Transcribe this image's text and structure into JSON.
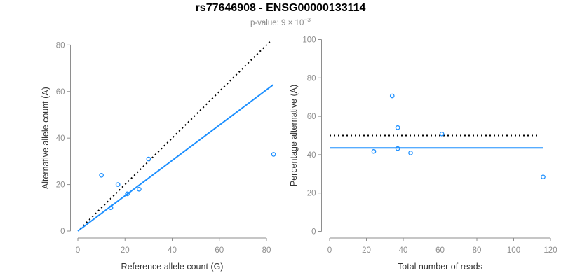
{
  "header": {
    "title": "rs77646908 - ENSG00000133114",
    "subtitle_main": "p-value: 9 × 10",
    "subtitle_exponent": "−3"
  },
  "colors": {
    "background": "#ffffff",
    "title": "#000000",
    "subtitle": "#8a8a8a",
    "axis_line": "#8e8e8e",
    "tick_label": "#8e8e8e",
    "axis_title": "#333333",
    "accent_blue": "#1E90FF",
    "dotted_black": "#000000"
  },
  "chart_data": [
    {
      "name": "allele-count-scatter",
      "type": "scatter",
      "title": "",
      "xlabel": "Reference allele count (G)",
      "ylabel": "Alternative allele count (A)",
      "xlim": [
        0,
        84
      ],
      "ylim": [
        0,
        82
      ],
      "xticks": [
        0,
        20,
        40,
        60,
        80
      ],
      "yticks": [
        0,
        20,
        40,
        60,
        80
      ],
      "grid": false,
      "legend_position": "none",
      "points": [
        [
          10,
          24
        ],
        [
          14,
          10
        ],
        [
          17,
          20
        ],
        [
          21,
          16
        ],
        [
          26,
          18
        ],
        [
          30,
          31
        ],
        [
          83,
          33
        ]
      ],
      "lines": [
        {
          "name": "identity-dotted-line",
          "style": "dotted",
          "color": "#000000",
          "x1": 1,
          "y1": 1,
          "x2": 82,
          "y2": 82
        },
        {
          "name": "allelic-ratio-fit-line",
          "style": "solid",
          "color": "#1E90FF",
          "x1": 0,
          "y1": 0,
          "x2": 83,
          "y2": 63
        }
      ]
    },
    {
      "name": "percentage-alternative-scatter",
      "type": "scatter",
      "title": "",
      "xlabel": "Total number of reads",
      "ylabel": "Percentage alternative (A)",
      "xlim": [
        0,
        120
      ],
      "ylim": [
        0,
        100
      ],
      "xticks": [
        0,
        20,
        40,
        60,
        80,
        100,
        120
      ],
      "yticks": [
        0,
        20,
        40,
        60,
        80,
        100
      ],
      "grid": false,
      "legend_position": "none",
      "points": [
        [
          24,
          41.7
        ],
        [
          34,
          70.6
        ],
        [
          37,
          54.1
        ],
        [
          37,
          43.2
        ],
        [
          44,
          40.9
        ],
        [
          61,
          50.8
        ],
        [
          116,
          28.4
        ]
      ],
      "lines": [
        {
          "name": "expected-50pct-dotted-line",
          "style": "dotted",
          "color": "#000000",
          "x1": 0,
          "y1": 50,
          "x2": 113.5,
          "y2": 50
        },
        {
          "name": "mean-percentage-line",
          "style": "solid",
          "color": "#1E90FF",
          "x1": 0,
          "y1": 43.5,
          "x2": 116,
          "y2": 43.5
        }
      ]
    }
  ]
}
